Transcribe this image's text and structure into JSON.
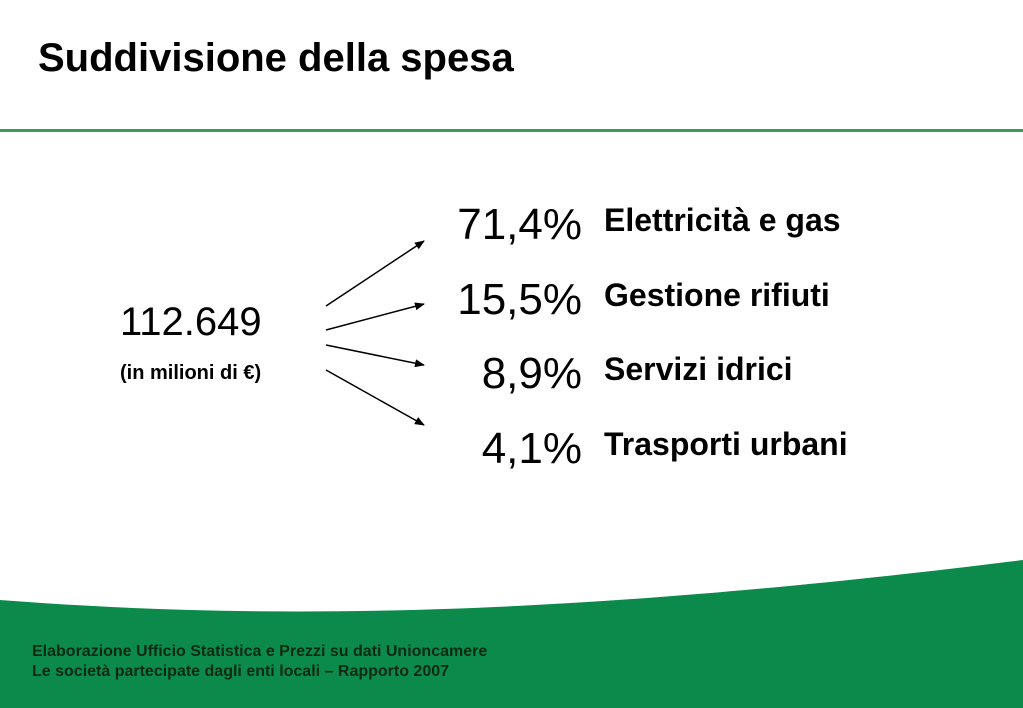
{
  "header": {
    "title": "Suddivisione della spesa"
  },
  "summary": {
    "total": "112.649",
    "unit": "(in milioni di €)"
  },
  "breakdown": [
    {
      "percent": "71,4%",
      "label": "Elettricità e gas"
    },
    {
      "percent": "15,5%",
      "label": "Gestione rifiuti"
    },
    {
      "percent": "8,9%",
      "label": "Servizi idrici"
    },
    {
      "percent": "4,1%",
      "label": "Trasporti urbani"
    }
  ],
  "footer": {
    "line1": "Elaborazione Ufficio Statistica e Prezzi su dati Unioncamere",
    "line2": "Le società partecipate dagli enti locali – Rapporto 2007"
  },
  "colors": {
    "accent_green": "#0b8a4b",
    "rule_green": "#3a9a5b",
    "text": "#000000"
  }
}
